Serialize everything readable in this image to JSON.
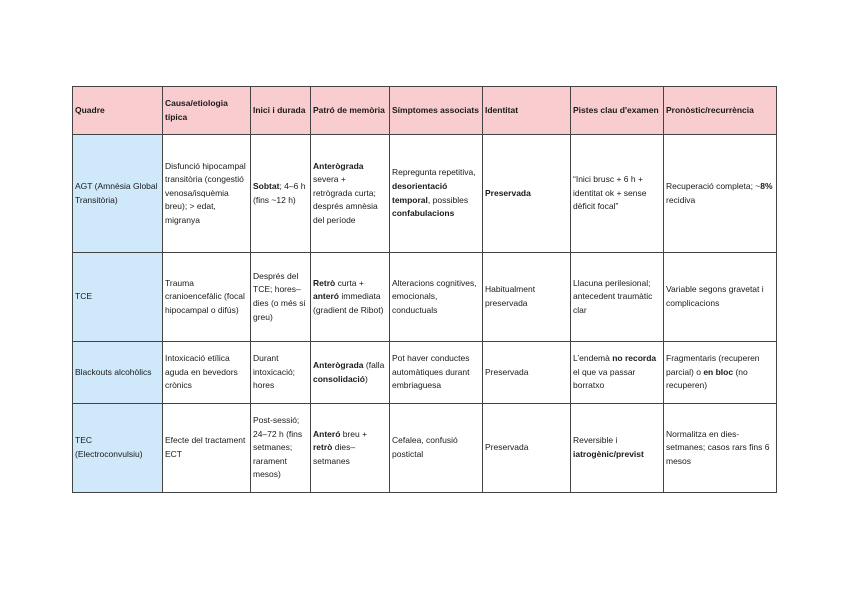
{
  "headers": [
    "Quadre",
    "Causa/etiologia típica",
    "Inici i durada",
    "Patró de memòria",
    "Símptomes associats",
    "Identitat",
    "Pistes clau d'examen",
    "Pronòstic/recurrència"
  ],
  "rows": [
    {
      "name": "AGT (Amnèsia Global Transitòria)",
      "cause": "Disfunció hipocampal transitòria (congestió venosa/isquèmia breu); > edat, migranya",
      "onset": {
        "b1": "Sobtat",
        "t1": "; 4–6 h (fins ~12 h)"
      },
      "memory": {
        "b1": "Anterògrada",
        "t1": " severa + retrògrada curta; després amnèsia del període"
      },
      "symptoms": {
        "t1": "Repregunta repetitiva, ",
        "b1": "desorientació temporal",
        "t2": ", possibles ",
        "b2": "confabulacions"
      },
      "identity": "Preservada",
      "clues": "“Inici brusc + 6 h + identitat ok + sense dèficit focal”",
      "prognosis": {
        "t1": "Recuperació completa; ~",
        "b1": "8%",
        "t2": " recidiva"
      }
    },
    {
      "name": "TCE",
      "cause": "Trauma cranioencefàlic (focal hipocampal o difús)",
      "onset": "Després del TCE; hores–dies (o més si greu)",
      "memory": {
        "b1": "Retrò",
        "t1": " curta + ",
        "b2": "anteró",
        "t2": " immediata (gradient de Ribot)"
      },
      "symptoms": "Alteracions cognitives, emocionals, conductuals",
      "identity": "Habitualment preservada",
      "clues": "Llacuna perilesional; antecedent traumàtic clar",
      "prognosis": "Variable segons gravetat i complicacions"
    },
    {
      "name": "Blackouts alcohòlics",
      "cause": "Intoxicació etílica aguda en bevedors crònics",
      "onset": "Durant intoxicació; hores",
      "memory": {
        "b1": "Anterògrada",
        "t1": " (falla ",
        "b2": "consolidació",
        "t2": ")"
      },
      "symptoms": "Pot haver conductes automàtiques durant embriaguesa",
      "identity": "Preservada",
      "clues": {
        "t1": "L’endemà ",
        "b1": "no recorda",
        "t2": " el que va passar borratxo"
      },
      "prognosis": {
        "t1": "Fragmentaris (recuperen parcial) o ",
        "b1": "en bloc",
        "t2": " (no recuperen)"
      }
    },
    {
      "name": "TEC (Electroconvulsiu)",
      "cause": "Efecte del tractament ECT",
      "onset": "Post-sessió; 24–72 h (fins setmanes; rarament mesos)",
      "memory": {
        "b1": "Anteró",
        "t1": " breu + ",
        "b2": "retrò",
        "t2": " dies–setmanes"
      },
      "symptoms": "Cefalea, confusió postictal",
      "identity": "Preservada",
      "clues": {
        "t1": "Reversible i ",
        "b1": "iatrogènic/previst"
      },
      "prognosis": "Normalitza en dies-setmanes; casos rars fins 6 mesos"
    }
  ]
}
